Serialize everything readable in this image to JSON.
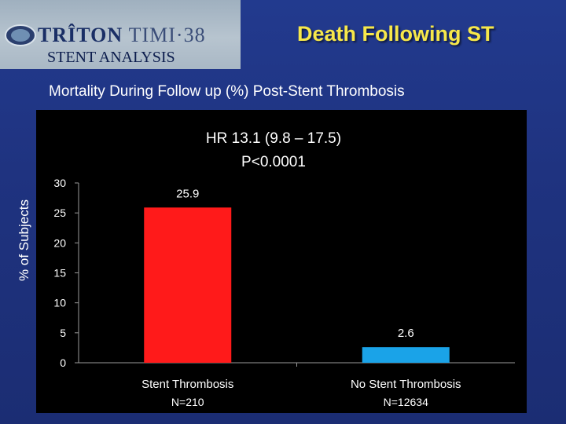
{
  "header": {
    "logo_text_a": "TRÎTON",
    "logo_text_b": "TIMI·38",
    "logo_subtitle": "STENT ANALYSIS",
    "slide_title": "Death Following ST"
  },
  "chart_heading": "Mortality During Follow up  (%) Post-Stent Thrombosis",
  "colors": {
    "title_yellow": "#f7e84a",
    "bar_stent_thrombosis": "#ff1a1a",
    "bar_no_stent_thrombosis": "#1aa3e8"
  },
  "chart_data": {
    "type": "bar",
    "title": "",
    "xlabel": "",
    "ylabel": "% of Subjects",
    "ylim": [
      0,
      30
    ],
    "yticks": [
      0,
      5,
      10,
      15,
      20,
      25,
      30
    ],
    "categories": [
      "Stent Thrombosis",
      "No Stent Thrombosis"
    ],
    "values": [
      25.9,
      2.6
    ],
    "value_labels": [
      "25.9",
      "2.6"
    ],
    "n_labels": [
      "N=210",
      "N=12634"
    ],
    "annotation_lines": [
      "HR 13.1 (9.8 – 17.5)",
      "P<0.0001"
    ],
    "grid": false,
    "legend": "none"
  }
}
